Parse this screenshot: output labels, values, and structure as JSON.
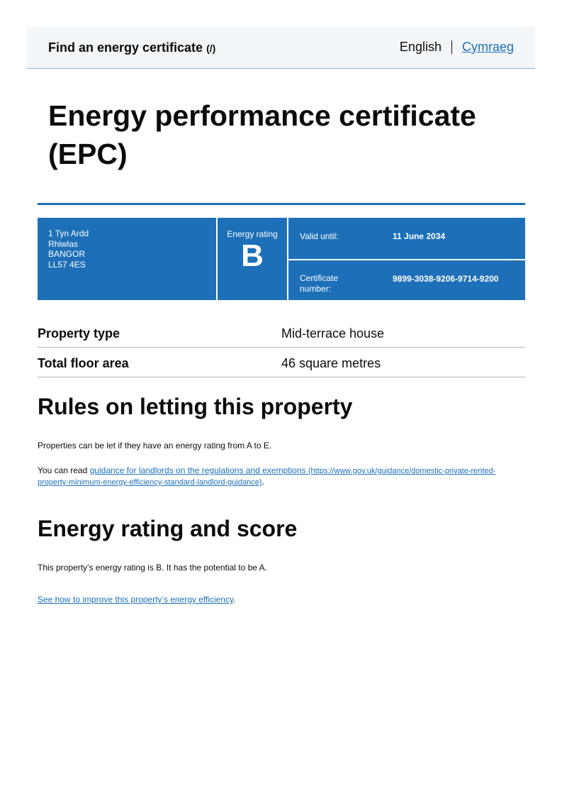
{
  "header": {
    "service_name": "Find an energy certificate",
    "service_link": "(/)",
    "lang_current": "English",
    "lang_other": "Cymraeg"
  },
  "title": "Energy performance certificate (EPC)",
  "summary": {
    "address": [
      "1 Tyn Ardd",
      "Rhiwlas",
      "BANGOR",
      "LL57 4ES"
    ],
    "rating_label": "Energy rating",
    "rating": "B",
    "valid_until_label": "Valid until:",
    "valid_until": "11 June 2034",
    "certificate_number_label": "Certificate number:",
    "certificate_number": "9899-3038-9206-9714-9200"
  },
  "properties": [
    {
      "label": "Property type",
      "value": "Mid-terrace house"
    },
    {
      "label": "Total floor area",
      "value": "46 square metres"
    }
  ],
  "letting": {
    "heading": "Rules on letting this property",
    "para1": "Properties can be let if they have an energy rating from A to E.",
    "para2_prefix": "You can read ",
    "link_text": "guidance for landlords on the regulations and exemptions",
    "link_url": "(https://www.gov.uk/guidance/domestic-private-rented-property-minimum-energy-efficiency-standard-landlord-guidance)",
    "para2_suffix": "."
  },
  "rating_section": {
    "heading": "Energy rating and score",
    "para": "This property’s energy rating is B. It has the potential to be A.",
    "link_text": "See how to improve this property’s energy efficiency",
    "link_suffix": "."
  },
  "colors": {
    "brand_blue": "#1d70b8",
    "header_bg": "#f3f6f9"
  }
}
